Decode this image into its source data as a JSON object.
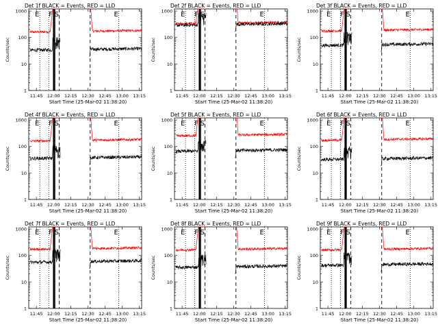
{
  "figure": {
    "panel_titles": [
      "Det 1f BLACK = Events, RED = LLD",
      "Det 2f BLACK = Events, RED = LLD",
      "Det 3f BLACK = Events, RED = LLD",
      "Det 4f BLACK = Events, RED = LLD",
      "Det 5f BLACK = Events, RED = LLD",
      "Det 6f BLACK = Events, RED = LLD",
      "Det 7f BLACK = Events, RED = LLD",
      "Det 8f BLACK = Events, RED = LLD",
      "Det 9f BLACK = Events, RED = LLD"
    ],
    "xlabel": "Start Time (25-Mar-02 11:38:20)",
    "ylabel": "Counts/sec",
    "colors": {
      "events": "#000000",
      "lld": "#ff0000",
      "axes": "#000000"
    }
  },
  "chart_data": {
    "type": "line",
    "panel_count": 9,
    "xlim": [
      "11:38:20",
      "13:17:00"
    ],
    "x_tick_labels": [
      "11:45",
      "12:00",
      "12:15",
      "12:30",
      "12:45",
      "13:00",
      "13:15"
    ],
    "y_scale": "log",
    "ylim": [
      1,
      1200
    ],
    "y_tick_labels": [
      "1",
      "10",
      "100",
      "1000"
    ],
    "grid": false,
    "marker_letters": [
      "E",
      "F",
      "S",
      "E"
    ],
    "marker_lines": [
      {
        "time": "11:48",
        "style": "dotted",
        "letter": "E"
      },
      {
        "time": "11:56",
        "style": "dotted"
      },
      {
        "time": "12:00",
        "style": "solid",
        "letter": "F"
      },
      {
        "time": "12:01",
        "style": "solid"
      },
      {
        "time": "12:05",
        "style": "dashed",
        "letter": "S"
      },
      {
        "time": "12:32",
        "style": "dashed"
      },
      {
        "time": "12:57",
        "style": "dotted",
        "letter": "E"
      }
    ],
    "data_gap": [
      "12:06",
      "12:31"
    ],
    "panels": [
      {
        "id": "1f",
        "lld_level": 160,
        "events_level": 33
      },
      {
        "id": "2f",
        "lld_level": 330,
        "events_level": 290
      },
      {
        "id": "3f",
        "lld_level": 175,
        "events_level": 50
      },
      {
        "id": "4f",
        "lld_level": 160,
        "events_level": 35
      },
      {
        "id": "5f",
        "lld_level": 250,
        "events_level": 65
      },
      {
        "id": "6f",
        "lld_level": 170,
        "events_level": 32
      },
      {
        "id": "7f",
        "lld_level": 170,
        "events_level": 55
      },
      {
        "id": "8f",
        "lld_level": 160,
        "events_level": 35
      },
      {
        "id": "9f",
        "lld_level": 160,
        "events_level": 42
      }
    ],
    "series": [
      {
        "name": "Events",
        "color": "#000000"
      },
      {
        "name": "LLD",
        "color": "#ff0000"
      }
    ]
  }
}
